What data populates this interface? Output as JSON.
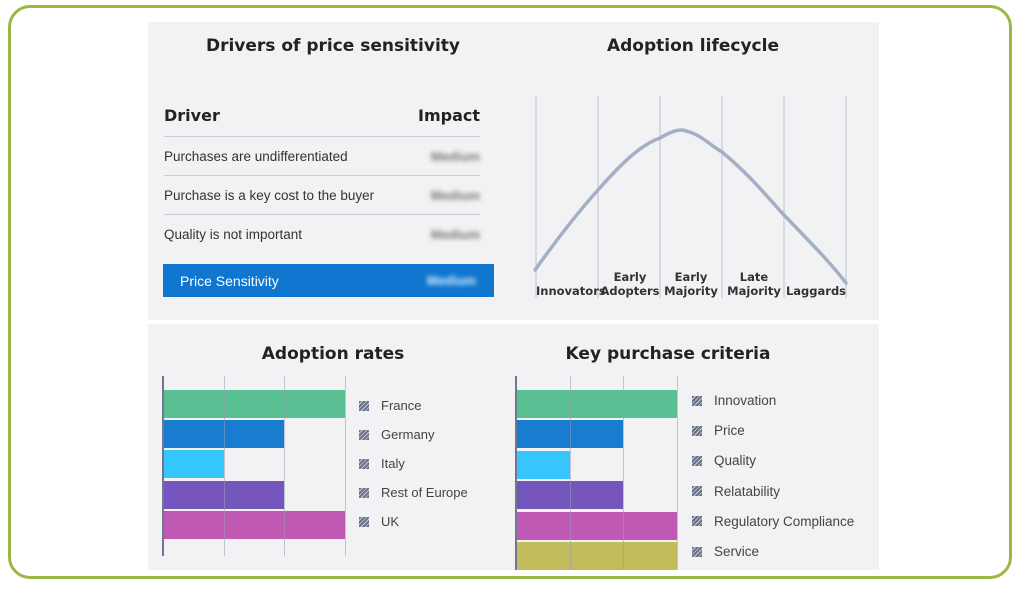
{
  "drivers_panel": {
    "title": "Drivers of price sensitivity",
    "columns": [
      "Driver",
      "Impact"
    ],
    "rows": [
      {
        "driver": "Purchases are undifferentiated",
        "impact": "Medium"
      },
      {
        "driver": "Purchase is a key cost to the buyer",
        "impact": "Medium"
      },
      {
        "driver": "Quality is not important",
        "impact": "Medium"
      }
    ],
    "summary": {
      "label": "Price Sensitivity",
      "impact": "Medium",
      "color": "#0f77cf"
    }
  },
  "lifecycle_panel": {
    "title": "Adoption lifecycle",
    "stages": [
      {
        "line1": "",
        "line2": "Innovators"
      },
      {
        "line1": "Early",
        "line2": "Adopters"
      },
      {
        "line1": "Early",
        "line2": "Majority"
      },
      {
        "line1": "Late",
        "line2": "Majority"
      },
      {
        "line1": "",
        "line2": "Laggards"
      }
    ],
    "curve_color": "#a3b0c4"
  },
  "adoption_panel": {
    "title": "Adoption rates"
  },
  "kpc_panel": {
    "title": "Key purchase criteria"
  },
  "frame_color": "#9ab943",
  "chart_data": [
    {
      "type": "table",
      "title": "Drivers of price sensitivity",
      "columns": [
        "Driver",
        "Impact"
      ],
      "rows": [
        [
          "Purchases are undifferentiated",
          "Medium"
        ],
        [
          "Purchase is a key cost to the buyer",
          "Medium"
        ],
        [
          "Quality is not important",
          "Medium"
        ],
        [
          "Price Sensitivity",
          "Medium"
        ]
      ]
    },
    {
      "type": "line",
      "title": "Adoption lifecycle",
      "categories": [
        "Innovators",
        "Early Adopters",
        "Early Majority",
        "Late Majority",
        "Laggards"
      ],
      "description": "Bell-shaped adoption curve peaking in Early Majority",
      "x": [
        0,
        1,
        2,
        2.4,
        3,
        4,
        5
      ],
      "values": [
        0.05,
        0.55,
        0.9,
        0.95,
        0.85,
        0.42,
        0.0
      ]
    },
    {
      "type": "bar",
      "orientation": "horizontal",
      "title": "Adoption rates",
      "categories": [
        "France",
        "Germany",
        "Italy",
        "Rest of Europe",
        "UK"
      ],
      "values": [
        3,
        2,
        1,
        2,
        3
      ],
      "colors": [
        "#52bd8f",
        "#0f77cf",
        "#2ec4fb",
        "#6f4fbb",
        "#bd52b0"
      ],
      "xlim": [
        0,
        3
      ],
      "grid": true,
      "legend_position": "right",
      "xlabel": "",
      "ylabel": ""
    },
    {
      "type": "bar",
      "orientation": "horizontal",
      "title": "Key purchase criteria",
      "categories": [
        "Innovation",
        "Price",
        "Quality",
        "Relatability",
        "Regulatory Compliance",
        "Service"
      ],
      "values": [
        3,
        2,
        1,
        2,
        3,
        3
      ],
      "colors": [
        "#52bd8f",
        "#0f77cf",
        "#2ec4fb",
        "#6f4fbb",
        "#bd52b0",
        "#c0b955"
      ],
      "xlim": [
        0,
        3
      ],
      "grid": true,
      "legend_position": "right",
      "xlabel": "",
      "ylabel": ""
    }
  ]
}
